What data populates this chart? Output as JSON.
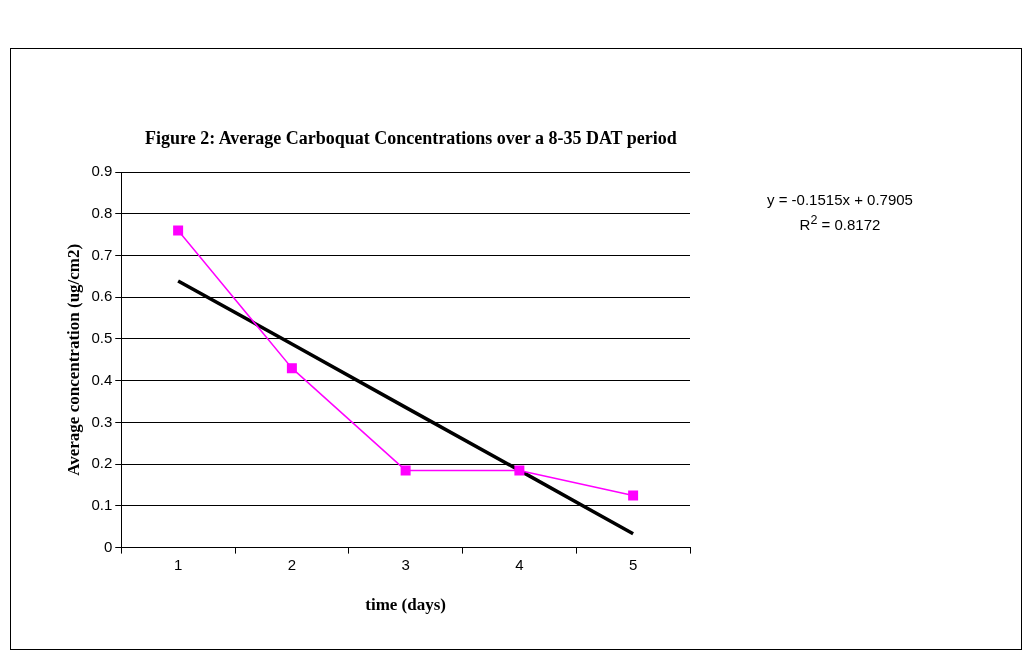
{
  "chart_data": {
    "type": "line",
    "title": "Figure 2: Average Carboquat Concentrations over a 8-35 DAT period",
    "xlabel": "time (days)",
    "ylabel": "Average concentration (ug/cm2)",
    "categories": [
      "1",
      "2",
      "3",
      "4",
      "5"
    ],
    "series": [
      {
        "color": "#ff00ff",
        "values": [
          0.76,
          0.43,
          0.185,
          0.185,
          0.125
        ],
        "marker": "square"
      },
      {
        "color": "#000000",
        "values": [
          0.639,
          0.488,
          0.336,
          0.185,
          0.033
        ],
        "marker": "none"
      }
    ],
    "ylim": [
      0,
      0.9
    ],
    "yticks": [
      0,
      0.1,
      0.2,
      0.3,
      0.4,
      0.5,
      0.6,
      0.7,
      0.8,
      0.9
    ],
    "grid": "y",
    "legend": false,
    "annotations": [
      "y = -0.1515x + 0.7905",
      "R$^{2}$ = 0.8172"
    ]
  }
}
